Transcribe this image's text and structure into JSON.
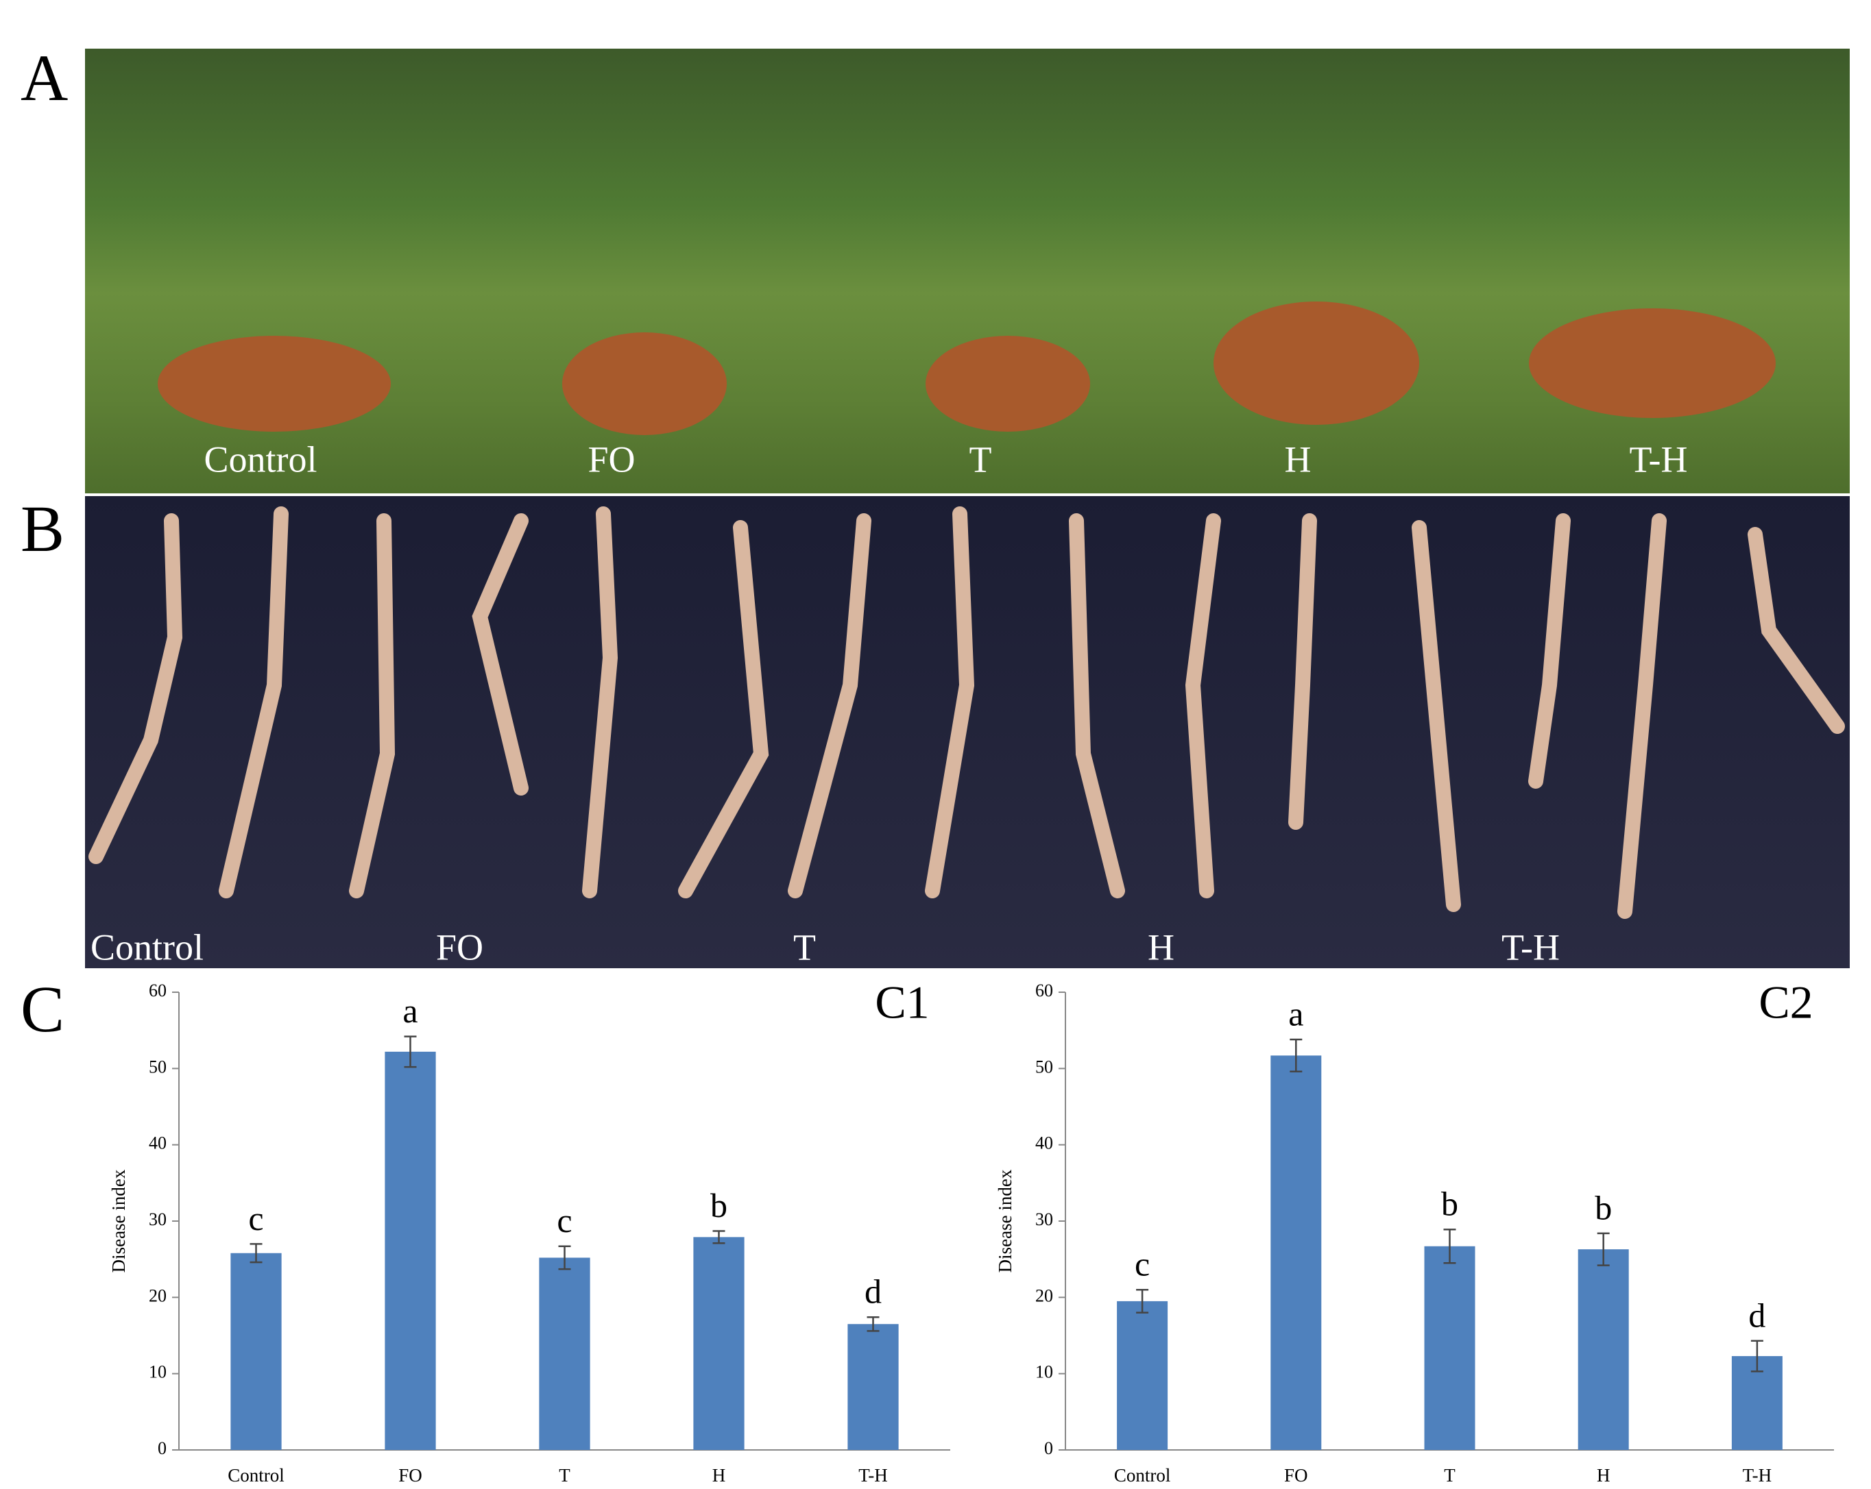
{
  "panels": {
    "A": {
      "label": "A",
      "photo_labels": [
        "Control",
        "FO",
        "T",
        "H",
        "T-H"
      ]
    },
    "B": {
      "label": "B",
      "photo_labels": [
        "Control",
        "FO",
        "T",
        "H",
        "T-H"
      ]
    },
    "C": {
      "label": "C"
    }
  },
  "chart_data": [
    {
      "type": "bar",
      "title": "C1",
      "ylabel": "Disease index",
      "categories": [
        "Control",
        "FO",
        "T",
        "H",
        "T-H"
      ],
      "values": [
        25.8,
        52.2,
        25.2,
        27.9,
        16.5
      ],
      "errors": [
        1.2,
        2.0,
        1.5,
        0.8,
        0.9
      ],
      "annotations": [
        "c",
        "a",
        "c",
        "b",
        "d"
      ],
      "color": "#4f81bd",
      "ylim": [
        0,
        60
      ],
      "yticks": [
        0,
        10,
        20,
        30,
        40,
        50,
        60
      ],
      "grid": false
    },
    {
      "type": "bar",
      "title": "C2",
      "ylabel": "Disease index",
      "categories": [
        "Control",
        "FO",
        "T",
        "H",
        "T-H"
      ],
      "values": [
        19.5,
        51.7,
        26.7,
        26.3,
        12.3
      ],
      "errors": [
        1.5,
        2.1,
        2.2,
        2.1,
        2.0
      ],
      "annotations": [
        "c",
        "a",
        "b",
        "b",
        "d"
      ],
      "color": "#4f81bd",
      "ylim": [
        0,
        60
      ],
      "yticks": [
        0,
        10,
        20,
        30,
        40,
        50,
        60
      ],
      "grid": false
    }
  ]
}
